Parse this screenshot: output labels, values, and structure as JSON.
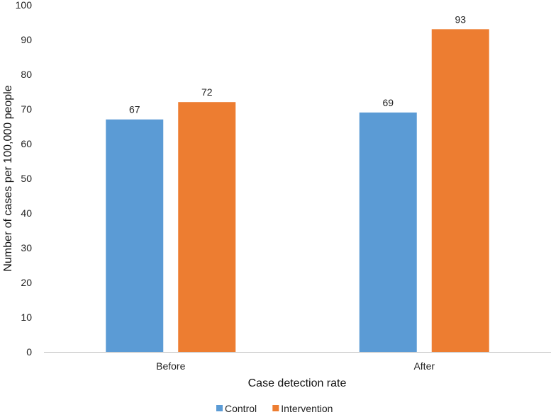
{
  "chart_data": {
    "type": "bar",
    "categories": [
      "Before",
      "After"
    ],
    "series": [
      {
        "name": "Control",
        "values": [
          67,
          69
        ],
        "color": "#5B9BD5"
      },
      {
        "name": "Intervention",
        "values": [
          72,
          93
        ],
        "color": "#ED7D31"
      }
    ],
    "xlabel": "Case detection rate",
    "ylabel": "Number of cases per 100,000 people",
    "ylim": [
      0,
      100
    ],
    "yticks": [
      0,
      10,
      20,
      30,
      40,
      50,
      60,
      70,
      80,
      90,
      100
    ],
    "grid": false,
    "data_labels": true,
    "legend_position": "bottom"
  }
}
